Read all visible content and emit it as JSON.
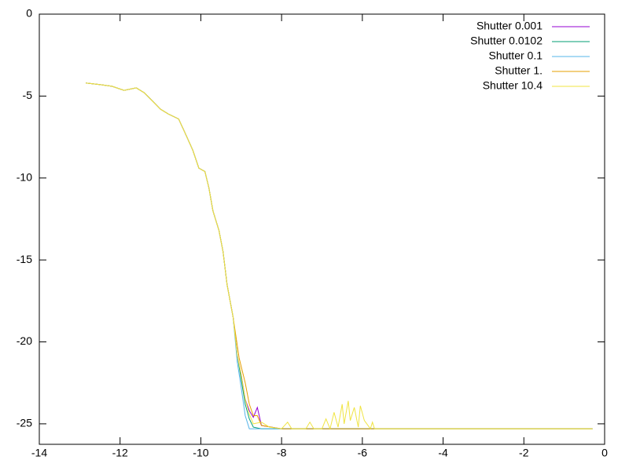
{
  "chart_data": {
    "type": "line",
    "xlim": [
      -14,
      0
    ],
    "ylim": [
      -26.25,
      0
    ],
    "xticks": [
      -14,
      -12,
      -10,
      -8,
      -6,
      -4,
      -2,
      0
    ],
    "yticks": [
      0,
      -5,
      -10,
      -15,
      -20,
      -25
    ],
    "legend": "top-right",
    "series": [
      {
        "name": "Shutter 0.001",
        "color": "#9400d3",
        "x": [
          -12.85,
          -12.5,
          -12.2,
          -11.9,
          -11.6,
          -11.4,
          -11.2,
          -11.0,
          -10.8,
          -10.55,
          -10.4,
          -10.2,
          -10.05,
          -9.9,
          -9.8,
          -9.7,
          -9.55,
          -9.45,
          -9.35,
          -9.2,
          -9.1,
          -9.0,
          -8.9,
          -8.8,
          -8.7,
          -8.6,
          -8.5,
          -8.0,
          -0.3
        ],
        "values": [
          -4.2,
          -4.3,
          -4.4,
          -4.65,
          -4.5,
          -4.8,
          -5.3,
          -5.8,
          -6.1,
          -6.4,
          -7.2,
          -8.3,
          -9.4,
          -9.6,
          -10.6,
          -12.0,
          -13.2,
          -14.5,
          -16.5,
          -18.5,
          -20.8,
          -22.0,
          -23.5,
          -24.2,
          -24.6,
          -24.0,
          -25.1,
          -25.3,
          -25.3
        ]
      },
      {
        "name": "Shutter 0.0102",
        "color": "#009e73",
        "x": [
          -12.85,
          -12.5,
          -12.2,
          -11.9,
          -11.6,
          -11.4,
          -11.2,
          -11.0,
          -10.8,
          -10.55,
          -10.4,
          -10.2,
          -10.05,
          -9.9,
          -9.8,
          -9.7,
          -9.55,
          -9.45,
          -9.35,
          -9.2,
          -9.1,
          -9.0,
          -8.9,
          -8.8,
          -8.7,
          -8.5,
          -8.0,
          -0.3
        ],
        "values": [
          -4.2,
          -4.3,
          -4.4,
          -4.65,
          -4.5,
          -4.8,
          -5.3,
          -5.8,
          -6.1,
          -6.4,
          -7.2,
          -8.3,
          -9.4,
          -9.6,
          -10.6,
          -12.0,
          -13.2,
          -14.5,
          -16.5,
          -18.5,
          -20.8,
          -22.3,
          -23.8,
          -24.7,
          -25.2,
          -25.3,
          -25.3,
          -25.3
        ]
      },
      {
        "name": "Shutter 0.1",
        "color": "#56b4e9",
        "x": [
          -12.85,
          -12.5,
          -12.2,
          -11.9,
          -11.6,
          -11.4,
          -11.2,
          -11.0,
          -10.8,
          -10.55,
          -10.4,
          -10.2,
          -10.05,
          -9.9,
          -9.8,
          -9.7,
          -9.55,
          -9.45,
          -9.35,
          -9.2,
          -9.1,
          -9.0,
          -8.9,
          -8.8,
          -8.7,
          -8.5,
          -8.0,
          -0.3
        ],
        "values": [
          -4.2,
          -4.3,
          -4.4,
          -4.65,
          -4.5,
          -4.8,
          -5.3,
          -5.8,
          -6.1,
          -6.4,
          -7.2,
          -8.3,
          -9.4,
          -9.6,
          -10.6,
          -12.0,
          -13.2,
          -14.5,
          -16.5,
          -18.5,
          -21.2,
          -22.8,
          -24.5,
          -25.3,
          -25.3,
          -25.3,
          -25.3,
          -25.3
        ]
      },
      {
        "name": "Shutter 1.",
        "color": "#e69f00",
        "x": [
          -12.85,
          -12.5,
          -12.2,
          -11.9,
          -11.6,
          -11.4,
          -11.2,
          -11.0,
          -10.8,
          -10.55,
          -10.4,
          -10.2,
          -10.05,
          -9.9,
          -9.8,
          -9.7,
          -9.55,
          -9.45,
          -9.35,
          -9.2,
          -9.05,
          -8.9,
          -8.8,
          -8.7,
          -8.6,
          -8.5,
          -8.0,
          -0.3
        ],
        "values": [
          -4.2,
          -4.3,
          -4.4,
          -4.65,
          -4.5,
          -4.8,
          -5.3,
          -5.8,
          -6.1,
          -6.4,
          -7.2,
          -8.3,
          -9.4,
          -9.6,
          -10.6,
          -12.0,
          -13.2,
          -14.5,
          -16.5,
          -18.5,
          -21.0,
          -22.5,
          -23.8,
          -24.5,
          -24.5,
          -25.1,
          -25.3,
          -25.3
        ]
      },
      {
        "name": "Shutter 10.4",
        "color": "#f0e442",
        "x": [
          -12.85,
          -12.5,
          -12.2,
          -11.9,
          -11.6,
          -11.4,
          -11.2,
          -11.0,
          -10.8,
          -10.55,
          -10.4,
          -10.2,
          -10.05,
          -9.9,
          -9.8,
          -9.7,
          -9.55,
          -9.45,
          -9.35,
          -9.2,
          -9.1,
          -9.0,
          -8.9,
          -8.8,
          -8.7,
          -8.5,
          -8.3,
          -8.0,
          -7.85,
          -7.75,
          -7.4,
          -7.3,
          -7.2,
          -7.0,
          -6.9,
          -6.8,
          -6.7,
          -6.6,
          -6.5,
          -6.45,
          -6.35,
          -6.3,
          -6.2,
          -6.1,
          -6.05,
          -5.95,
          -5.8,
          -5.75,
          -5.7,
          -0.3
        ],
        "values": [
          -4.2,
          -4.3,
          -4.4,
          -4.65,
          -4.5,
          -4.8,
          -5.3,
          -5.8,
          -6.1,
          -6.4,
          -7.2,
          -8.3,
          -9.4,
          -9.6,
          -10.6,
          -12.0,
          -13.2,
          -14.5,
          -16.5,
          -18.5,
          -20.8,
          -22.0,
          -23.5,
          -24.4,
          -25.0,
          -24.9,
          -25.2,
          -25.3,
          -24.9,
          -25.3,
          -25.3,
          -24.9,
          -25.3,
          -25.3,
          -24.7,
          -25.3,
          -24.3,
          -25.2,
          -23.8,
          -25.0,
          -23.6,
          -24.8,
          -24.0,
          -25.2,
          -23.9,
          -24.8,
          -25.3,
          -24.9,
          -25.3,
          -25.3
        ]
      }
    ]
  }
}
